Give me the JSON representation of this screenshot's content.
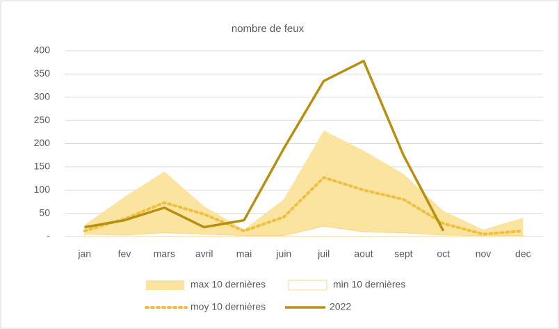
{
  "chart_data": {
    "type": "line",
    "title": "nombre de feux",
    "categories": [
      "jan",
      "fev",
      "mars",
      "avril",
      "mai",
      "juin",
      "juil",
      "aout",
      "sept",
      "oct",
      "nov",
      "dec"
    ],
    "ylim": [
      0,
      400
    ],
    "yticks": [
      {
        "value": 0,
        "label": "-"
      },
      50,
      100,
      150,
      200,
      250,
      300,
      350,
      400
    ],
    "grid": true,
    "legend": "bottom",
    "series": [
      {
        "name": "max 10 dernières",
        "style": "area",
        "color": "#fbe3a0",
        "values": [
          25,
          85,
          140,
          65,
          15,
          80,
          228,
          185,
          135,
          55,
          15,
          40
        ]
      },
      {
        "name": "min 10 dernières",
        "style": "area",
        "color": "#ffffff",
        "stroke": "#f5d88a",
        "values": [
          5,
          3,
          8,
          5,
          2,
          2,
          22,
          10,
          8,
          3,
          2,
          2
        ]
      },
      {
        "name": "moy 10 dernières",
        "style": "dotted",
        "color": "#f0bf40",
        "values": [
          12,
          38,
          73,
          48,
          12,
          42,
          127,
          100,
          80,
          28,
          5,
          12
        ]
      },
      {
        "name": "2022",
        "style": "solid",
        "color": "#b8900f",
        "values": [
          20,
          35,
          62,
          20,
          35,
          190,
          335,
          378,
          175,
          12,
          null,
          null
        ]
      }
    ]
  }
}
